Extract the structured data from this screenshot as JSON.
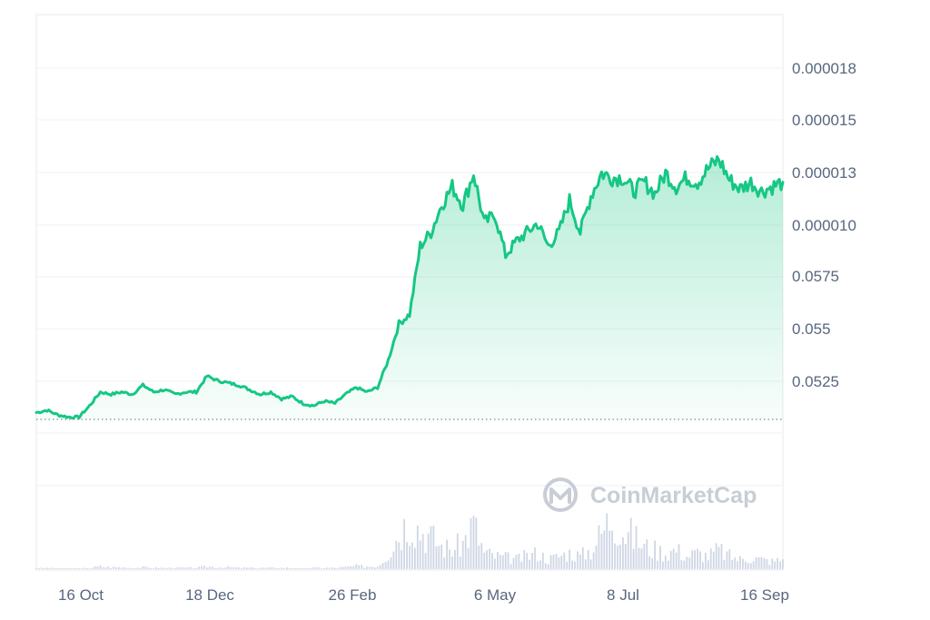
{
  "chart_data": {
    "type": "area",
    "title": "",
    "xlabel": "",
    "ylabel": "",
    "watermark": "CoinMarketCap",
    "colors": {
      "line_up": "#16c784",
      "line_down": "#ea3943",
      "fill": "#16c784",
      "grid": "#eff2f5",
      "baseline": "#808a9d",
      "volume": "#cfd6e4",
      "tick_text": "#58667e"
    },
    "y_tick_labels": [
      "0.000018",
      "0.000015",
      "0.000013",
      "0.000010",
      "0.0575",
      "0.055",
      "0.0525"
    ],
    "x_tick_labels": [
      "16 Oct",
      "18 Dec",
      "26 Feb",
      "6 May",
      "8 Jul",
      "16 Sep"
    ],
    "ylim": [
      0,
      8
    ],
    "grid": true,
    "reference_line": "dotted horizontal line at opening price",
    "series": [
      {
        "values": [
          0.15,
          0.2,
          0.1,
          0.05,
          0.05,
          0.3,
          0.6,
          0.55,
          0.6,
          0.55,
          0.75,
          0.6,
          0.65,
          0.55,
          0.6,
          0.6,
          0.95,
          0.85,
          0.8,
          0.75,
          0.65,
          0.55,
          0.6,
          0.45,
          0.5,
          0.35,
          0.3,
          0.4,
          0.35,
          0.55,
          0.7,
          0.6,
          0.7,
          1.3,
          2.1,
          2.3,
          3.8,
          4.1,
          4.7,
          5.1,
          4.7,
          5.4,
          4.3,
          4.5,
          3.6,
          3.9,
          4.1,
          4.3,
          3.8,
          4.1,
          4.8,
          4.1,
          4.9,
          5.4,
          5.3,
          5.3,
          5.0,
          5.2,
          4.95,
          5.4,
          5.1,
          5.3,
          5.2,
          5.5,
          5.7,
          5.25,
          5.05,
          5.2,
          5.0,
          5.1,
          5.2
        ]
      }
    ],
    "volume": [
      0.01,
      0.02,
      0.01,
      0.01,
      0.01,
      0.02,
      0.04,
      0.03,
      0.03,
      0.02,
      0.03,
      0.02,
      0.02,
      0.02,
      0.02,
      0.02,
      0.04,
      0.03,
      0.03,
      0.02,
      0.02,
      0.02,
      0.02,
      0.02,
      0.02,
      0.01,
      0.02,
      0.02,
      0.02,
      0.03,
      0.05,
      0.04,
      0.05,
      0.25,
      0.55,
      0.8,
      0.6,
      0.5,
      0.35,
      0.3,
      0.4,
      0.7,
      0.25,
      0.2,
      0.18,
      0.15,
      0.2,
      0.25,
      0.15,
      0.2,
      0.25,
      0.2,
      0.3,
      0.55,
      0.85,
      0.6,
      0.5,
      0.35,
      0.3,
      0.25,
      0.3,
      0.2,
      0.25,
      0.2,
      0.3,
      0.2,
      0.15,
      0.18,
      0.15,
      0.12,
      0.15
    ]
  }
}
